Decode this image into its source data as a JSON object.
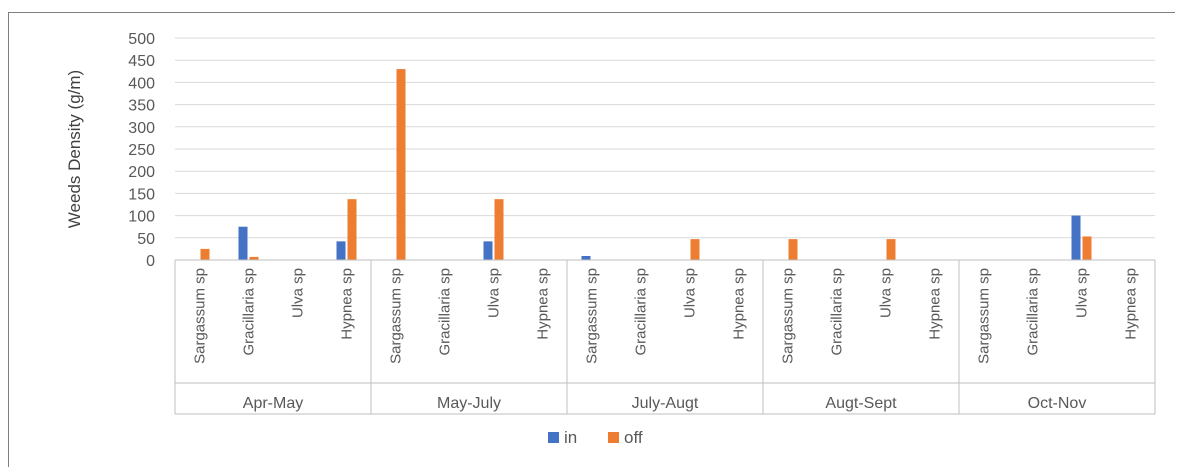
{
  "chart_data": {
    "type": "bar",
    "ylabel": "Weeds Density (g/m)",
    "xlabel": "",
    "ylim": [
      0,
      500
    ],
    "yticks": [
      0,
      50,
      100,
      150,
      200,
      250,
      300,
      350,
      400,
      450,
      500
    ],
    "grid": true,
    "legend_position": "bottom",
    "groups": [
      "Apr-May",
      "May-July",
      "July-Augt",
      "Augt-Sept",
      "Oct-Nov"
    ],
    "species": [
      "Sargassum sp",
      "Gracillaria sp",
      "Ulva sp",
      "Hypnea sp"
    ],
    "series": [
      {
        "name": "in",
        "color": "#4472c4",
        "values": [
          0,
          75,
          0,
          42,
          0,
          0,
          42,
          0,
          9,
          0,
          0,
          0,
          0,
          0,
          0,
          0,
          0,
          0,
          100,
          0
        ]
      },
      {
        "name": "off",
        "color": "#ed7d31",
        "values": [
          25,
          7,
          0,
          137,
          430,
          0,
          137,
          0,
          0,
          0,
          47,
          0,
          47,
          0,
          47,
          0,
          0,
          0,
          53,
          0
        ]
      }
    ]
  }
}
